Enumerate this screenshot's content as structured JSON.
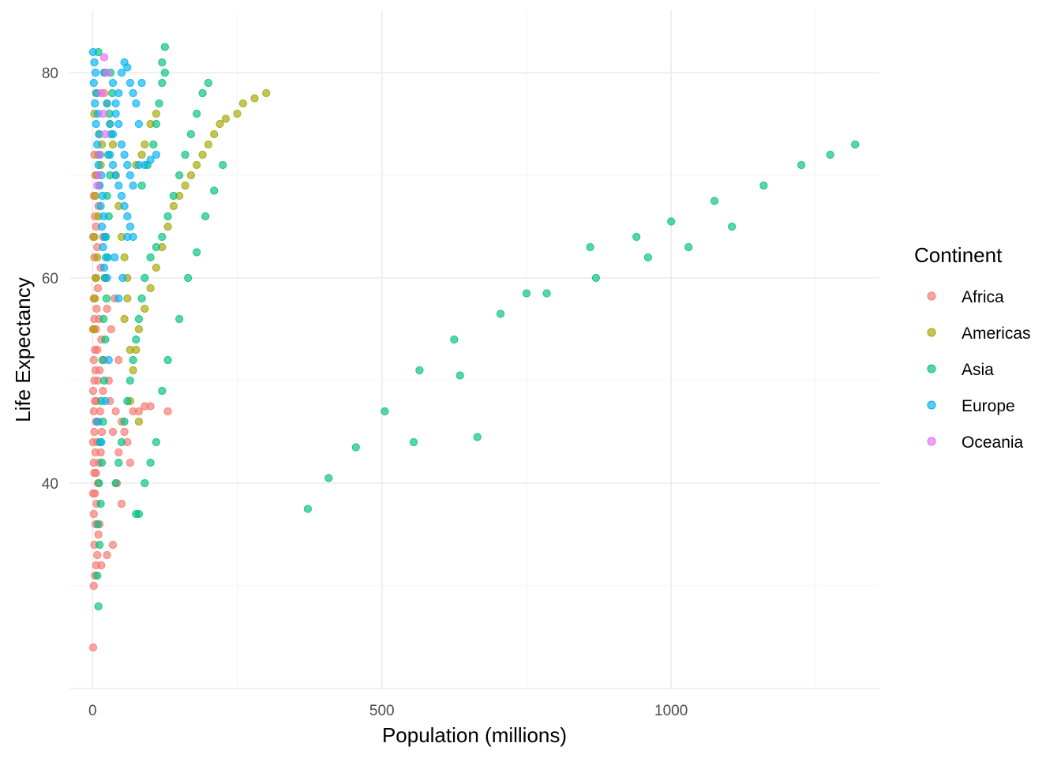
{
  "chart_data": {
    "type": "scatter",
    "title": "",
    "xlabel": "Population (millions)",
    "ylabel": "Life Expectancy",
    "xlim": [
      -40,
      1360
    ],
    "ylim": [
      20,
      86
    ],
    "xticks": [
      0,
      500,
      1000
    ],
    "yticks": [
      40,
      60,
      80
    ],
    "grid": true,
    "legend": {
      "title": "Continent",
      "placement": "right"
    },
    "series": [
      {
        "name": "Africa",
        "color": "#F8766D",
        "points": [
          [
            1,
            24
          ],
          [
            2,
            30
          ],
          [
            4,
            31
          ],
          [
            6,
            32
          ],
          [
            8,
            33
          ],
          [
            3,
            34
          ],
          [
            10,
            35
          ],
          [
            5,
            36
          ],
          [
            12,
            36
          ],
          [
            2,
            37
          ],
          [
            7,
            38
          ],
          [
            1,
            39
          ],
          [
            4,
            39
          ],
          [
            9,
            40
          ],
          [
            3,
            41
          ],
          [
            6,
            41
          ],
          [
            11,
            42
          ],
          [
            2,
            42
          ],
          [
            14,
            43
          ],
          [
            5,
            43
          ],
          [
            8,
            44
          ],
          [
            1,
            44
          ],
          [
            16,
            45
          ],
          [
            3,
            45
          ],
          [
            10,
            46
          ],
          [
            6,
            46
          ],
          [
            2,
            47
          ],
          [
            13,
            47
          ],
          [
            4,
            48
          ],
          [
            7,
            48
          ],
          [
            18,
            49
          ],
          [
            1,
            49
          ],
          [
            9,
            50
          ],
          [
            3,
            50
          ],
          [
            12,
            51
          ],
          [
            5,
            51
          ],
          [
            2,
            52
          ],
          [
            20,
            52
          ],
          [
            8,
            53
          ],
          [
            4,
            53
          ],
          [
            15,
            54
          ],
          [
            6,
            55
          ],
          [
            1,
            55
          ],
          [
            11,
            56
          ],
          [
            3,
            56
          ],
          [
            7,
            57
          ],
          [
            25,
            57
          ],
          [
            2,
            58
          ],
          [
            9,
            59
          ],
          [
            5,
            60
          ],
          [
            14,
            61
          ],
          [
            3,
            62
          ],
          [
            8,
            63
          ],
          [
            1,
            64
          ],
          [
            6,
            65
          ],
          [
            4,
            66
          ],
          [
            10,
            67
          ],
          [
            2,
            68
          ],
          [
            5,
            70
          ],
          [
            3,
            72
          ],
          [
            20,
            78
          ],
          [
            30,
            48
          ],
          [
            35,
            45
          ],
          [
            40,
            47
          ],
          [
            45,
            43
          ],
          [
            50,
            46
          ],
          [
            55,
            45
          ],
          [
            60,
            44
          ],
          [
            65,
            42
          ],
          [
            70,
            47
          ],
          [
            80,
            47
          ],
          [
            90,
            47.5
          ],
          [
            100,
            47.5
          ],
          [
            130,
            47
          ],
          [
            35,
            34
          ],
          [
            25,
            33
          ],
          [
            15,
            32
          ],
          [
            50,
            38
          ],
          [
            42,
            40
          ],
          [
            28,
            50
          ],
          [
            32,
            55
          ],
          [
            38,
            58
          ],
          [
            22,
            60
          ],
          [
            45,
            52
          ],
          [
            18,
            64
          ]
        ]
      },
      {
        "name": "Americas",
        "color": "#A3A500",
        "points": [
          [
            2,
            55
          ],
          [
            4,
            58
          ],
          [
            6,
            60
          ],
          [
            8,
            62
          ],
          [
            3,
            64
          ],
          [
            10,
            66
          ],
          [
            5,
            68
          ],
          [
            12,
            69
          ],
          [
            7,
            70
          ],
          [
            14,
            71
          ],
          [
            9,
            72
          ],
          [
            16,
            73
          ],
          [
            11,
            74
          ],
          [
            3,
            76
          ],
          [
            6,
            78
          ],
          [
            20,
            80
          ],
          [
            25,
            77
          ],
          [
            30,
            75
          ],
          [
            35,
            73
          ],
          [
            40,
            70
          ],
          [
            45,
            67
          ],
          [
            50,
            64
          ],
          [
            55,
            62
          ],
          [
            60,
            58
          ],
          [
            65,
            53
          ],
          [
            70,
            51
          ],
          [
            75,
            53
          ],
          [
            80,
            55
          ],
          [
            90,
            57
          ],
          [
            100,
            59
          ],
          [
            110,
            61
          ],
          [
            120,
            63
          ],
          [
            130,
            65
          ],
          [
            140,
            67
          ],
          [
            150,
            68
          ],
          [
            160,
            69
          ],
          [
            170,
            70
          ],
          [
            180,
            71
          ],
          [
            190,
            72
          ],
          [
            200,
            73
          ],
          [
            210,
            74
          ],
          [
            220,
            75
          ],
          [
            230,
            75.5
          ],
          [
            250,
            76
          ],
          [
            260,
            77
          ],
          [
            280,
            77.5
          ],
          [
            300,
            78
          ],
          [
            100,
            75
          ],
          [
            110,
            76
          ],
          [
            90,
            73
          ],
          [
            85,
            72
          ],
          [
            75,
            71
          ],
          [
            60,
            60
          ],
          [
            55,
            56
          ],
          [
            65,
            48
          ],
          [
            80,
            46
          ]
        ]
      },
      {
        "name": "Asia",
        "color": "#00BF7D",
        "points": [
          [
            10,
            28
          ],
          [
            8,
            31
          ],
          [
            12,
            34
          ],
          [
            9,
            36
          ],
          [
            14,
            38
          ],
          [
            11,
            40
          ],
          [
            16,
            42
          ],
          [
            13,
            44
          ],
          [
            18,
            46
          ],
          [
            15,
            48
          ],
          [
            20,
            50
          ],
          [
            17,
            52
          ],
          [
            22,
            54
          ],
          [
            19,
            56
          ],
          [
            24,
            58
          ],
          [
            21,
            60
          ],
          [
            26,
            62
          ],
          [
            23,
            64
          ],
          [
            28,
            66
          ],
          [
            25,
            68
          ],
          [
            30,
            70
          ],
          [
            27,
            72
          ],
          [
            32,
            74
          ],
          [
            29,
            76
          ],
          [
            34,
            78
          ],
          [
            31,
            80
          ],
          [
            10,
            82
          ],
          [
            40,
            40
          ],
          [
            45,
            42
          ],
          [
            50,
            44
          ],
          [
            55,
            46
          ],
          [
            60,
            48
          ],
          [
            65,
            50
          ],
          [
            70,
            52
          ],
          [
            75,
            54
          ],
          [
            80,
            56
          ],
          [
            85,
            58
          ],
          [
            90,
            60
          ],
          [
            100,
            62
          ],
          [
            110,
            63
          ],
          [
            120,
            64
          ],
          [
            130,
            66
          ],
          [
            140,
            68
          ],
          [
            150,
            70
          ],
          [
            160,
            72
          ],
          [
            170,
            74
          ],
          [
            180,
            76
          ],
          [
            190,
            78
          ],
          [
            200,
            79
          ],
          [
            125,
            82.5
          ],
          [
            120,
            81
          ],
          [
            125,
            80
          ],
          [
            120,
            79
          ],
          [
            115,
            77
          ],
          [
            110,
            75
          ],
          [
            105,
            73
          ],
          [
            95,
            71
          ],
          [
            85,
            69
          ],
          [
            75,
            37
          ],
          [
            80,
            37
          ],
          [
            90,
            40
          ],
          [
            100,
            42
          ],
          [
            110,
            44
          ],
          [
            120,
            49
          ],
          [
            130,
            52
          ],
          [
            150,
            56
          ],
          [
            165,
            60
          ],
          [
            180,
            62.5
          ],
          [
            195,
            66
          ],
          [
            210,
            68.5
          ],
          [
            225,
            71
          ],
          [
            372,
            37.5
          ],
          [
            408,
            40.5
          ],
          [
            455,
            43.5
          ],
          [
            505,
            47
          ],
          [
            555,
            44
          ],
          [
            565,
            51
          ],
          [
            625,
            54
          ],
          [
            635,
            50.5
          ],
          [
            665,
            44.5
          ],
          [
            705,
            56.5
          ],
          [
            750,
            58.5
          ],
          [
            785,
            58.5
          ],
          [
            860,
            63
          ],
          [
            870,
            60
          ],
          [
            940,
            64
          ],
          [
            960,
            62
          ],
          [
            1000,
            65.5
          ],
          [
            1030,
            63
          ],
          [
            1075,
            67.5
          ],
          [
            1105,
            65
          ],
          [
            1160,
            69
          ],
          [
            1225,
            71
          ],
          [
            1275,
            72
          ],
          [
            1318,
            73
          ]
        ]
      },
      {
        "name": "Europe",
        "color": "#00B0F6",
        "points": [
          [
            1,
            82
          ],
          [
            3,
            81
          ],
          [
            5,
            80
          ],
          [
            2,
            79
          ],
          [
            7,
            78
          ],
          [
            4,
            77
          ],
          [
            9,
            76
          ],
          [
            6,
            75
          ],
          [
            11,
            74
          ],
          [
            8,
            73
          ],
          [
            13,
            72
          ],
          [
            10,
            71
          ],
          [
            15,
            70
          ],
          [
            12,
            69
          ],
          [
            17,
            68
          ],
          [
            14,
            67
          ],
          [
            19,
            66
          ],
          [
            16,
            65
          ],
          [
            21,
            64
          ],
          [
            18,
            63
          ],
          [
            23,
            62
          ],
          [
            20,
            61
          ],
          [
            25,
            60
          ],
          [
            30,
            72
          ],
          [
            35,
            74
          ],
          [
            40,
            76
          ],
          [
            45,
            78
          ],
          [
            50,
            80
          ],
          [
            55,
            81
          ],
          [
            60,
            80.5
          ],
          [
            65,
            79
          ],
          [
            70,
            78
          ],
          [
            75,
            77
          ],
          [
            80,
            75
          ],
          [
            35,
            71
          ],
          [
            40,
            70
          ],
          [
            45,
            69
          ],
          [
            50,
            68
          ],
          [
            55,
            67
          ],
          [
            60,
            66
          ],
          [
            65,
            65
          ],
          [
            70,
            64
          ],
          [
            35,
            79
          ],
          [
            40,
            77
          ],
          [
            45,
            75
          ],
          [
            50,
            73
          ],
          [
            55,
            72
          ],
          [
            60,
            71
          ],
          [
            65,
            70
          ],
          [
            70,
            69
          ],
          [
            80,
            71
          ],
          [
            90,
            71
          ],
          [
            100,
            71.5
          ],
          [
            110,
            72
          ],
          [
            20,
            80
          ],
          [
            25,
            77
          ],
          [
            30,
            75
          ],
          [
            45,
            58
          ],
          [
            52,
            60
          ],
          [
            38,
            62
          ],
          [
            60,
            64
          ],
          [
            85,
            79
          ],
          [
            15,
            44
          ],
          [
            22,
            48
          ],
          [
            8,
            46
          ],
          [
            28,
            52
          ]
        ]
      },
      {
        "name": "Oceania",
        "color": "#E76BF3",
        "points": [
          [
            20,
            81.5
          ],
          [
            25,
            80
          ],
          [
            15,
            78
          ],
          [
            18,
            76
          ],
          [
            22,
            74
          ],
          [
            12,
            72
          ],
          [
            10,
            70
          ],
          [
            8,
            69
          ]
        ]
      }
    ]
  }
}
